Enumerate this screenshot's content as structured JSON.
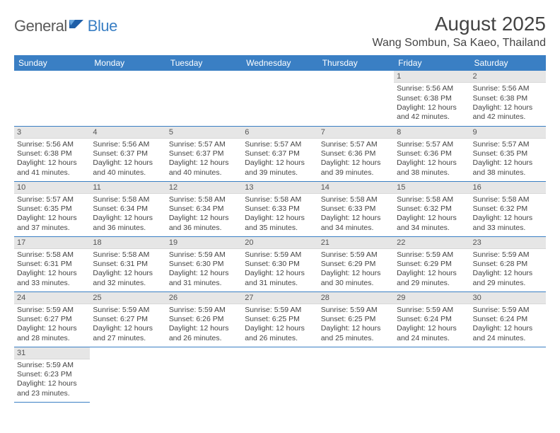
{
  "logo": {
    "text1": "General",
    "text2": "Blue"
  },
  "title": "August 2025",
  "location": "Wang Sombun, Sa Kaeo, Thailand",
  "colors": {
    "header_bg": "#3a7fc4",
    "header_text": "#ffffff",
    "daynum_bg": "#e6e6e6",
    "border": "#3a7fc4",
    "text": "#444444",
    "logo_gray": "#5a5a5a",
    "logo_blue": "#3a7fc4",
    "background": "#ffffff"
  },
  "weekdays": [
    "Sunday",
    "Monday",
    "Tuesday",
    "Wednesday",
    "Thursday",
    "Friday",
    "Saturday"
  ],
  "days": {
    "1": {
      "sunrise": "5:56 AM",
      "sunset": "6:38 PM",
      "daylight": "12 hours and 42 minutes."
    },
    "2": {
      "sunrise": "5:56 AM",
      "sunset": "6:38 PM",
      "daylight": "12 hours and 42 minutes."
    },
    "3": {
      "sunrise": "5:56 AM",
      "sunset": "6:38 PM",
      "daylight": "12 hours and 41 minutes."
    },
    "4": {
      "sunrise": "5:56 AM",
      "sunset": "6:37 PM",
      "daylight": "12 hours and 40 minutes."
    },
    "5": {
      "sunrise": "5:57 AM",
      "sunset": "6:37 PM",
      "daylight": "12 hours and 40 minutes."
    },
    "6": {
      "sunrise": "5:57 AM",
      "sunset": "6:37 PM",
      "daylight": "12 hours and 39 minutes."
    },
    "7": {
      "sunrise": "5:57 AM",
      "sunset": "6:36 PM",
      "daylight": "12 hours and 39 minutes."
    },
    "8": {
      "sunrise": "5:57 AM",
      "sunset": "6:36 PM",
      "daylight": "12 hours and 38 minutes."
    },
    "9": {
      "sunrise": "5:57 AM",
      "sunset": "6:35 PM",
      "daylight": "12 hours and 38 minutes."
    },
    "10": {
      "sunrise": "5:57 AM",
      "sunset": "6:35 PM",
      "daylight": "12 hours and 37 minutes."
    },
    "11": {
      "sunrise": "5:58 AM",
      "sunset": "6:34 PM",
      "daylight": "12 hours and 36 minutes."
    },
    "12": {
      "sunrise": "5:58 AM",
      "sunset": "6:34 PM",
      "daylight": "12 hours and 36 minutes."
    },
    "13": {
      "sunrise": "5:58 AM",
      "sunset": "6:33 PM",
      "daylight": "12 hours and 35 minutes."
    },
    "14": {
      "sunrise": "5:58 AM",
      "sunset": "6:33 PM",
      "daylight": "12 hours and 34 minutes."
    },
    "15": {
      "sunrise": "5:58 AM",
      "sunset": "6:32 PM",
      "daylight": "12 hours and 34 minutes."
    },
    "16": {
      "sunrise": "5:58 AM",
      "sunset": "6:32 PM",
      "daylight": "12 hours and 33 minutes."
    },
    "17": {
      "sunrise": "5:58 AM",
      "sunset": "6:31 PM",
      "daylight": "12 hours and 33 minutes."
    },
    "18": {
      "sunrise": "5:58 AM",
      "sunset": "6:31 PM",
      "daylight": "12 hours and 32 minutes."
    },
    "19": {
      "sunrise": "5:59 AM",
      "sunset": "6:30 PM",
      "daylight": "12 hours and 31 minutes."
    },
    "20": {
      "sunrise": "5:59 AM",
      "sunset": "6:30 PM",
      "daylight": "12 hours and 31 minutes."
    },
    "21": {
      "sunrise": "5:59 AM",
      "sunset": "6:29 PM",
      "daylight": "12 hours and 30 minutes."
    },
    "22": {
      "sunrise": "5:59 AM",
      "sunset": "6:29 PM",
      "daylight": "12 hours and 29 minutes."
    },
    "23": {
      "sunrise": "5:59 AM",
      "sunset": "6:28 PM",
      "daylight": "12 hours and 29 minutes."
    },
    "24": {
      "sunrise": "5:59 AM",
      "sunset": "6:27 PM",
      "daylight": "12 hours and 28 minutes."
    },
    "25": {
      "sunrise": "5:59 AM",
      "sunset": "6:27 PM",
      "daylight": "12 hours and 27 minutes."
    },
    "26": {
      "sunrise": "5:59 AM",
      "sunset": "6:26 PM",
      "daylight": "12 hours and 26 minutes."
    },
    "27": {
      "sunrise": "5:59 AM",
      "sunset": "6:25 PM",
      "daylight": "12 hours and 26 minutes."
    },
    "28": {
      "sunrise": "5:59 AM",
      "sunset": "6:25 PM",
      "daylight": "12 hours and 25 minutes."
    },
    "29": {
      "sunrise": "5:59 AM",
      "sunset": "6:24 PM",
      "daylight": "12 hours and 24 minutes."
    },
    "30": {
      "sunrise": "5:59 AM",
      "sunset": "6:24 PM",
      "daylight": "12 hours and 24 minutes."
    },
    "31": {
      "sunrise": "5:59 AM",
      "sunset": "6:23 PM",
      "daylight": "12 hours and 23 minutes."
    }
  },
  "labels": {
    "sunrise": "Sunrise: ",
    "sunset": "Sunset: ",
    "daylight": "Daylight: "
  },
  "grid_start_weekday": 0,
  "first_day_weekday": 5,
  "num_days": 31
}
